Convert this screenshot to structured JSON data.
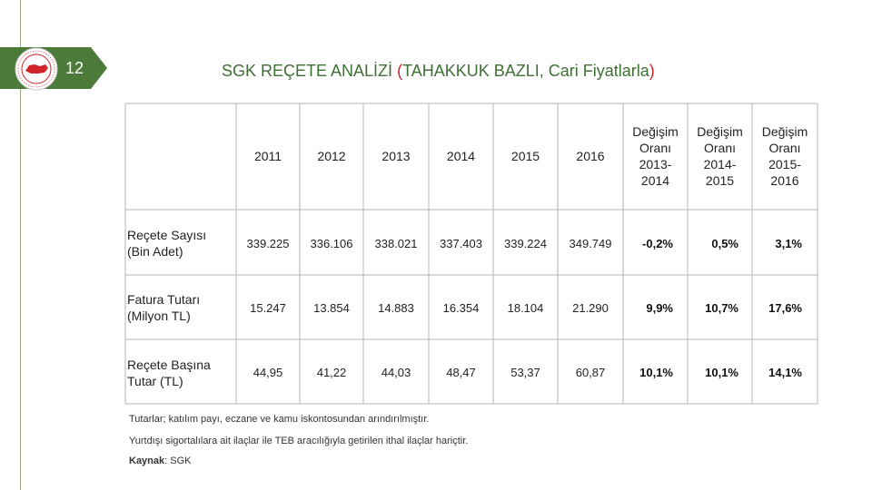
{
  "slide_number": "12",
  "title": {
    "main": "SGK REÇETE ANALİZİ ",
    "paren_open": "(",
    "sub": "TAHAKKUK BAZLI, Cari Fiyatlarla",
    "paren_close": ")"
  },
  "logo": {
    "name": "Türkiye Cumhuriyeti Sosyal Güvenlik Kurumu seal"
  },
  "table": {
    "headers": [
      "2011",
      "2012",
      "2013",
      "2014",
      "2015",
      "2016"
    ],
    "change_headers": [
      [
        "Değişim",
        "Oranı",
        "2013-",
        "2014"
      ],
      [
        "Değişim",
        "Oranı",
        "2014-",
        "2015"
      ],
      [
        "Değişim",
        "Oranı",
        "2015-",
        "2016"
      ]
    ],
    "rows": [
      {
        "label": [
          "Reçete Sayısı",
          "(Bin Adet)"
        ],
        "values": [
          "339.225",
          "336.106",
          "338.021",
          "337.403",
          "339.224",
          "349.749"
        ],
        "changes": [
          "-0,2%",
          "0,5%",
          "3,1%"
        ]
      },
      {
        "label": [
          "Fatura Tutarı",
          "(Milyon TL)"
        ],
        "values": [
          "15.247",
          "13.854",
          "14.883",
          "16.354",
          "18.104",
          "21.290"
        ],
        "changes": [
          "9,9%",
          "10,7%",
          "17,6%"
        ]
      },
      {
        "label": [
          "Reçete Başına",
          "Tutar (TL)"
        ],
        "values": [
          "44,95",
          "41,22",
          "44,03",
          "48,47",
          "53,37",
          "60,87"
        ],
        "changes": [
          "10,1%",
          "10,1%",
          "14,1%"
        ]
      }
    ]
  },
  "notes": {
    "line1": "Tutarlar; katılım payı, eczane ve kamu iskontosundan arındırılmıştır.",
    "line2": "Yurtdışı sigortalılara ait ilaçlar ile TEB aracılığıyla getirilen ithal ilaçlar hariçtir.",
    "source_label": "Kaynak",
    "source_value": ": SGK"
  },
  "colors": {
    "accent": "#4c7a3a",
    "title": "#3f6f35",
    "paren": "#d2232a",
    "grid": "#b5b5b5"
  }
}
